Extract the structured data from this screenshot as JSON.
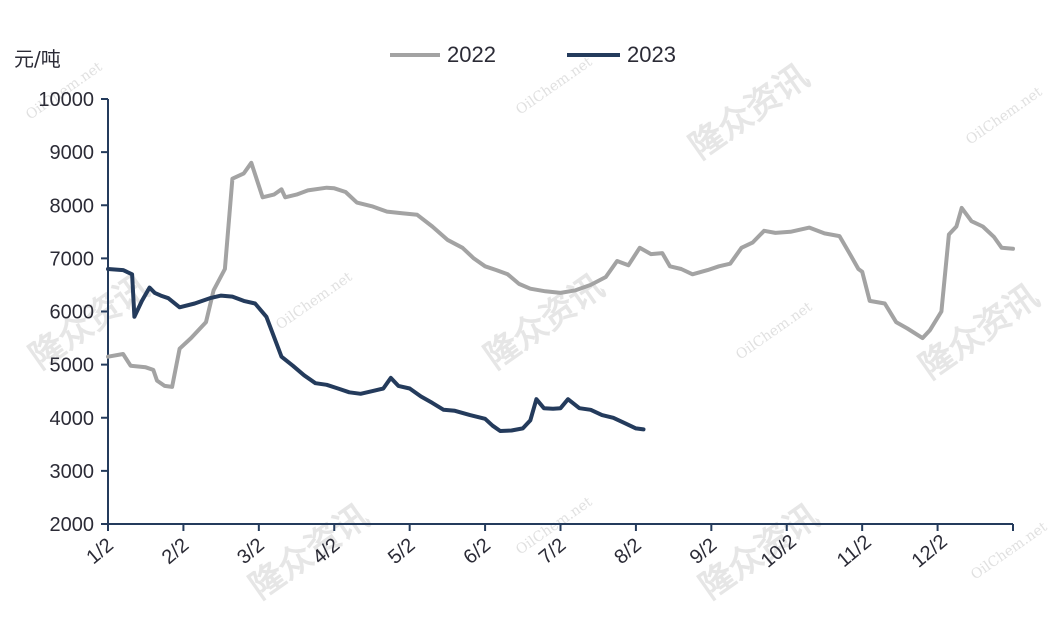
{
  "chart_data": {
    "type": "line",
    "unit": "元/吨",
    "ylim": [
      2000,
      10000
    ],
    "yticks": [
      2000,
      3000,
      4000,
      5000,
      6000,
      7000,
      8000,
      9000,
      10000
    ],
    "x_categories": [
      "1/2",
      "2/2",
      "3/2",
      "4/2",
      "5/2",
      "6/2",
      "7/2",
      "8/2",
      "9/2",
      "10/2",
      "11/2",
      "12/2"
    ],
    "x_range_months": [
      1,
      13
    ],
    "legend_position": "top",
    "series": [
      {
        "name": "2022",
        "color": "#a3a3a3",
        "points": [
          [
            1.0,
            5150
          ],
          [
            1.2,
            5200
          ],
          [
            1.3,
            4980
          ],
          [
            1.5,
            4950
          ],
          [
            1.6,
            4900
          ],
          [
            1.65,
            4700
          ],
          [
            1.75,
            4600
          ],
          [
            1.85,
            4580
          ],
          [
            1.95,
            5300
          ],
          [
            2.1,
            5500
          ],
          [
            2.3,
            5800
          ],
          [
            2.4,
            6400
          ],
          [
            2.55,
            6800
          ],
          [
            2.65,
            8500
          ],
          [
            2.8,
            8600
          ],
          [
            2.9,
            8800
          ],
          [
            3.05,
            8150
          ],
          [
            3.2,
            8200
          ],
          [
            3.3,
            8300
          ],
          [
            3.35,
            8150
          ],
          [
            3.5,
            8200
          ],
          [
            3.65,
            8280
          ],
          [
            3.9,
            8330
          ],
          [
            4.0,
            8320
          ],
          [
            4.15,
            8250
          ],
          [
            4.3,
            8050
          ],
          [
            4.5,
            7980
          ],
          [
            4.7,
            7880
          ],
          [
            4.9,
            7850
          ],
          [
            5.1,
            7820
          ],
          [
            5.3,
            7600
          ],
          [
            5.5,
            7350
          ],
          [
            5.7,
            7200
          ],
          [
            5.85,
            7000
          ],
          [
            6.0,
            6850
          ],
          [
            6.15,
            6780
          ],
          [
            6.3,
            6700
          ],
          [
            6.45,
            6520
          ],
          [
            6.6,
            6430
          ],
          [
            6.8,
            6380
          ],
          [
            7.0,
            6350
          ],
          [
            7.2,
            6400
          ],
          [
            7.4,
            6500
          ],
          [
            7.6,
            6650
          ],
          [
            7.75,
            6950
          ],
          [
            7.9,
            6870
          ],
          [
            8.05,
            7200
          ],
          [
            8.2,
            7080
          ],
          [
            8.35,
            7100
          ],
          [
            8.45,
            6850
          ],
          [
            8.6,
            6800
          ],
          [
            8.75,
            6700
          ],
          [
            8.95,
            6780
          ],
          [
            9.1,
            6850
          ],
          [
            9.25,
            6900
          ],
          [
            9.4,
            7200
          ],
          [
            9.55,
            7300
          ],
          [
            9.7,
            7520
          ],
          [
            9.85,
            7480
          ],
          [
            10.05,
            7500
          ],
          [
            10.3,
            7580
          ],
          [
            10.5,
            7470
          ],
          [
            10.7,
            7420
          ],
          [
            10.85,
            7050
          ],
          [
            10.95,
            6800
          ],
          [
            11.0,
            6750
          ],
          [
            11.1,
            6200
          ],
          [
            11.3,
            6150
          ],
          [
            11.45,
            5800
          ],
          [
            11.6,
            5680
          ],
          [
            11.8,
            5500
          ],
          [
            11.9,
            5650
          ],
          [
            12.05,
            6000
          ],
          [
            12.15,
            7450
          ],
          [
            12.25,
            7600
          ],
          [
            12.32,
            7950
          ],
          [
            12.45,
            7700
          ],
          [
            12.6,
            7600
          ],
          [
            12.75,
            7400
          ],
          [
            12.85,
            7200
          ],
          [
            13.0,
            7180
          ]
        ]
      },
      {
        "name": "2023",
        "color": "#243b5c",
        "points": [
          [
            1.0,
            6800
          ],
          [
            1.2,
            6780
          ],
          [
            1.32,
            6700
          ],
          [
            1.35,
            5900
          ],
          [
            1.45,
            6200
          ],
          [
            1.55,
            6450
          ],
          [
            1.62,
            6350
          ],
          [
            1.7,
            6300
          ],
          [
            1.8,
            6250
          ],
          [
            1.95,
            6080
          ],
          [
            2.15,
            6150
          ],
          [
            2.35,
            6250
          ],
          [
            2.5,
            6300
          ],
          [
            2.65,
            6280
          ],
          [
            2.8,
            6200
          ],
          [
            2.95,
            6150
          ],
          [
            3.1,
            5900
          ],
          [
            3.3,
            5150
          ],
          [
            3.45,
            4980
          ],
          [
            3.6,
            4800
          ],
          [
            3.75,
            4650
          ],
          [
            3.9,
            4620
          ],
          [
            4.05,
            4550
          ],
          [
            4.2,
            4480
          ],
          [
            4.35,
            4450
          ],
          [
            4.5,
            4500
          ],
          [
            4.65,
            4550
          ],
          [
            4.75,
            4750
          ],
          [
            4.85,
            4600
          ],
          [
            5.0,
            4550
          ],
          [
            5.15,
            4400
          ],
          [
            5.3,
            4280
          ],
          [
            5.45,
            4150
          ],
          [
            5.6,
            4130
          ],
          [
            5.8,
            4050
          ],
          [
            6.0,
            3980
          ],
          [
            6.1,
            3850
          ],
          [
            6.2,
            3750
          ],
          [
            6.35,
            3760
          ],
          [
            6.5,
            3800
          ],
          [
            6.6,
            3950
          ],
          [
            6.68,
            4350
          ],
          [
            6.78,
            4180
          ],
          [
            6.9,
            4170
          ],
          [
            7.0,
            4180
          ],
          [
            7.1,
            4350
          ],
          [
            7.25,
            4180
          ],
          [
            7.4,
            4150
          ],
          [
            7.55,
            4050
          ],
          [
            7.7,
            4000
          ],
          [
            7.85,
            3900
          ],
          [
            8.0,
            3800
          ],
          [
            8.1,
            3780
          ]
        ]
      }
    ]
  }
}
